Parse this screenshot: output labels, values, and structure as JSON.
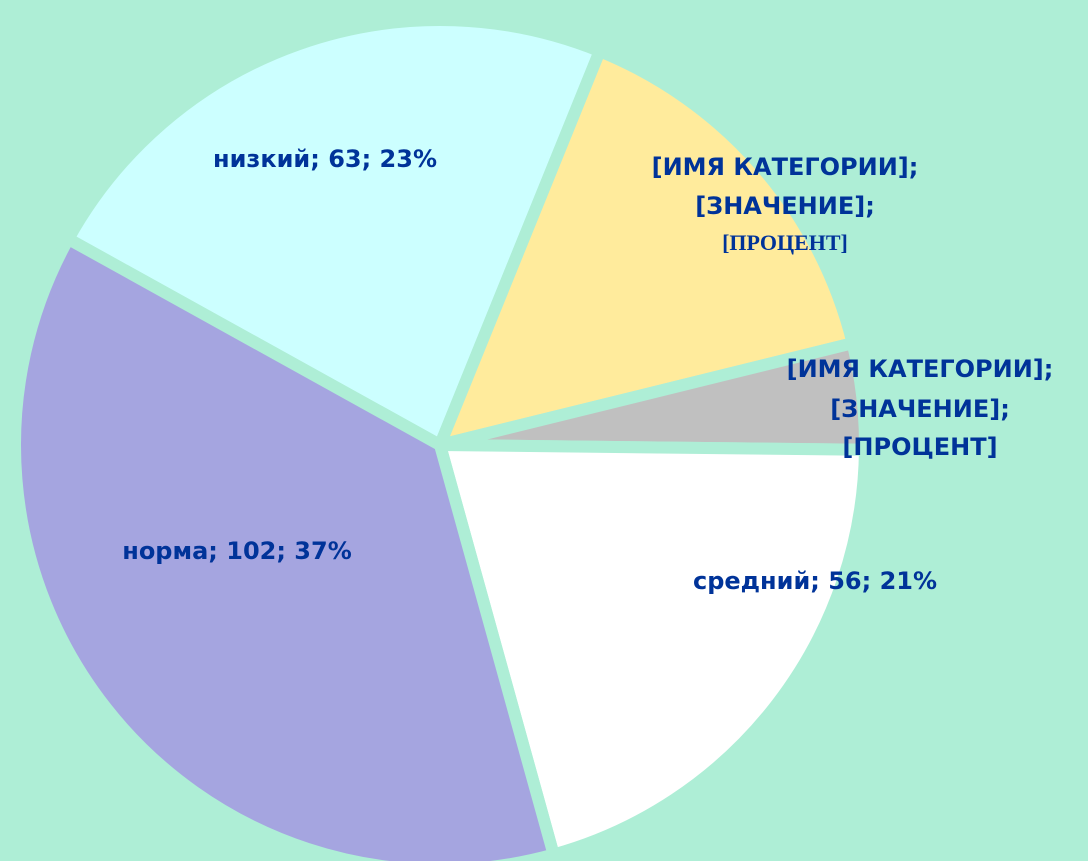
{
  "chart_data": {
    "type": "pie",
    "categories": [
      "низкий",
      null,
      null,
      "средний",
      "норма"
    ],
    "values": [
      63,
      41,
      11,
      56,
      102
    ],
    "colors": [
      "#ccffff",
      "#ffeb9c",
      "#c0c0c0",
      "#ffffff",
      "#a5a5e0"
    ],
    "value_labels": [
      [
        "низкий; 63; 23%"
      ],
      [
        "[ИМЯ КАТЕГОРИИ];",
        "[ЗНАЧЕНИЕ];",
        "[ПРОЦЕНТ]"
      ],
      [
        "[ИМЯ КАТЕГОРИИ];",
        "[ЗНАЧЕНИЕ];",
        "[ПРОЦЕНТ]"
      ],
      [
        "средний; 56; 21%"
      ],
      [
        "норма; 102; 37%"
      ]
    ]
  }
}
